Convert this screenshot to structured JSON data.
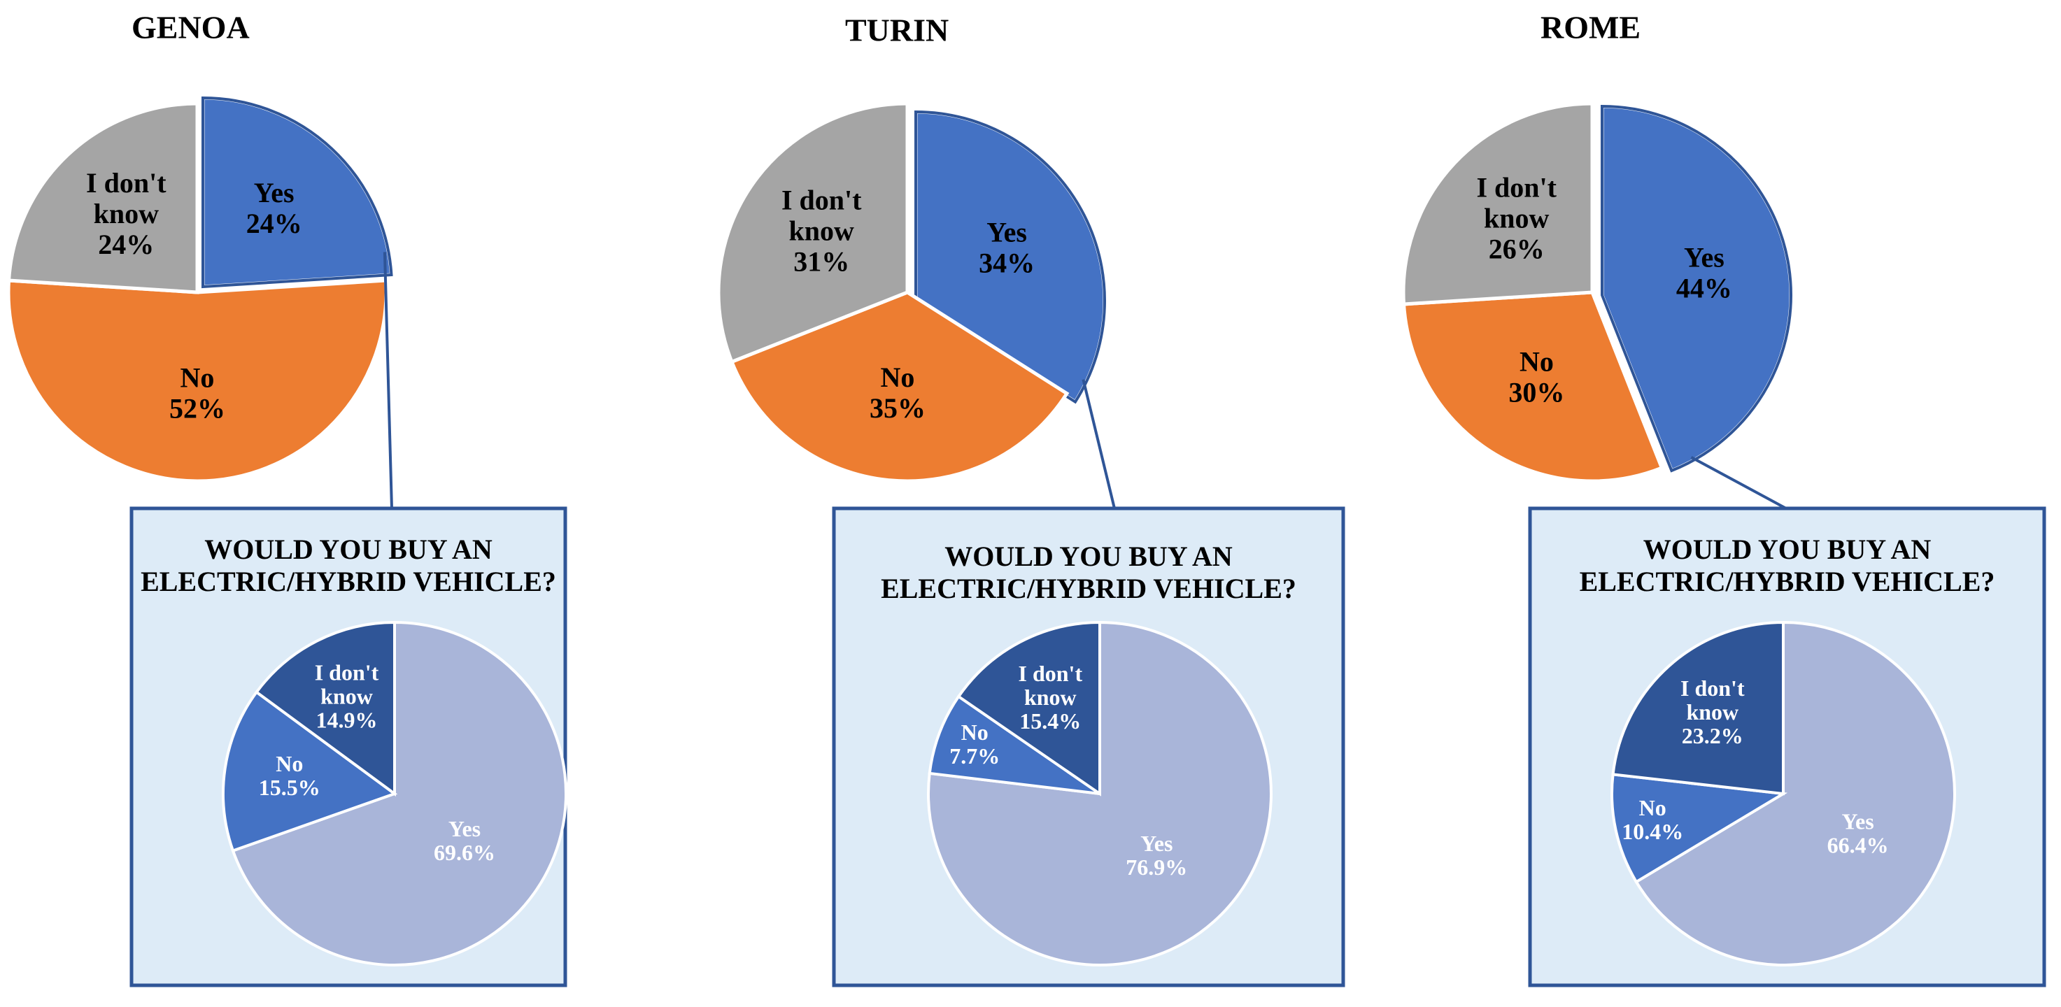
{
  "colors": {
    "yes": "#4472C4",
    "no": "#ED7D31",
    "dont_know": "#A5A5A5",
    "inset_yes": "#A9B5D9",
    "inset_no": "#4472C4",
    "inset_dont_know": "#2F5597",
    "inset_background": "#DDEBF7",
    "inset_border": "#2F5597"
  },
  "chart_data": [
    {
      "type": "pie",
      "title": "GENOA",
      "slices": [
        {
          "label": "Yes",
          "value": 24,
          "display": "24%",
          "exploded": true
        },
        {
          "label": "No",
          "value": 52,
          "display": "52%"
        },
        {
          "label": "I don't know",
          "value": 24,
          "display": "24%"
        }
      ],
      "inset": {
        "type": "pie",
        "title_lines": [
          "WOULD YOU BUY AN",
          "ELECTRIC/HYBRID VEHICLE?"
        ],
        "slices": [
          {
            "label": "Yes",
            "value": 69.6,
            "display": "69.6%"
          },
          {
            "label": "No",
            "value": 15.5,
            "display": "15.5%"
          },
          {
            "label": "I don't know",
            "value": 14.9,
            "display": "14.9%"
          }
        ]
      }
    },
    {
      "type": "pie",
      "title": "TURIN",
      "slices": [
        {
          "label": "Yes",
          "value": 34,
          "display": "34%",
          "exploded": true
        },
        {
          "label": "No",
          "value": 35,
          "display": "35%"
        },
        {
          "label": "I don't know",
          "value": 31,
          "display": "31%"
        }
      ],
      "inset": {
        "type": "pie",
        "title_lines": [
          "WOULD YOU BUY AN",
          "ELECTRIC/HYBRID VEHICLE?"
        ],
        "slices": [
          {
            "label": "Yes",
            "value": 76.9,
            "display": "76.9%"
          },
          {
            "label": "No",
            "value": 7.7,
            "display": "7.7%"
          },
          {
            "label": "I don't know",
            "value": 15.4,
            "display": "15.4%"
          }
        ]
      }
    },
    {
      "type": "pie",
      "title": "ROME",
      "slices": [
        {
          "label": "Yes",
          "value": 44,
          "display": "44%",
          "exploded": true
        },
        {
          "label": "No",
          "value": 30,
          "display": "30%"
        },
        {
          "label": "I don't know",
          "value": 26,
          "display": "26%"
        }
      ],
      "inset": {
        "type": "pie",
        "title_lines": [
          "WOULD YOU BUY AN",
          "ELECTRIC/HYBRID VEHICLE?"
        ],
        "slices": [
          {
            "label": "Yes",
            "value": 66.4,
            "display": "66.4%"
          },
          {
            "label": "No",
            "value": 10.4,
            "display": "10.4%"
          },
          {
            "label": "I don't know",
            "value": 23.2,
            "display": "23.2%"
          }
        ]
      }
    }
  ]
}
